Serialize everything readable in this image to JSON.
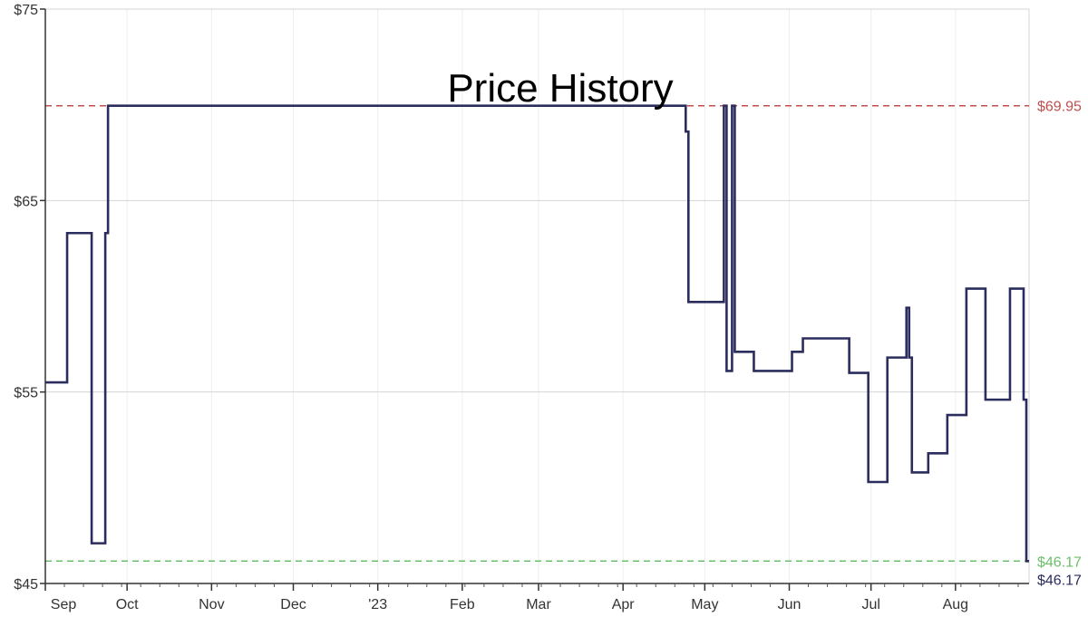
{
  "chart_data": {
    "type": "line",
    "title": "Price History",
    "xlabel": "",
    "ylabel": "",
    "ylim": [
      45,
      75
    ],
    "xlim": [
      "2022-09-01",
      "2023-08-28"
    ],
    "grid": true,
    "y_ticks": [
      "$75",
      "$65",
      "$55",
      "$45"
    ],
    "y_tick_values": [
      75,
      65,
      55,
      45
    ],
    "x_ticks": [
      {
        "label": "Sep",
        "date": "2022-09-01"
      },
      {
        "label": "Oct",
        "date": "2022-10-01"
      },
      {
        "label": "Nov",
        "date": "2022-11-01"
      },
      {
        "label": "Dec",
        "date": "2022-12-01"
      },
      {
        "label": "'23",
        "date": "2023-01-01"
      },
      {
        "label": "Feb",
        "date": "2023-02-01"
      },
      {
        "label": "Mar",
        "date": "2023-03-01"
      },
      {
        "label": "Apr",
        "date": "2023-04-01"
      },
      {
        "label": "May",
        "date": "2023-05-01"
      },
      {
        "label": "Jun",
        "date": "2023-06-01"
      },
      {
        "label": "Jul",
        "date": "2023-07-01"
      },
      {
        "label": "Aug",
        "date": "2023-08-01"
      }
    ],
    "reference_lines": [
      {
        "label": "$69.95",
        "value": 69.95,
        "color": "#c0504d"
      },
      {
        "label": "$46.17",
        "value": 46.17,
        "color": "#6abf69"
      }
    ],
    "current_label": {
      "label": "$46.17",
      "value": 46.17,
      "color": "#2b2d5e"
    },
    "series": [
      {
        "color": "#2b2d5e",
        "step": true,
        "points": [
          [
            "2022-08-28",
            55.5
          ],
          [
            "2022-09-09",
            63.3
          ],
          [
            "2022-09-18",
            47.1
          ],
          [
            "2022-09-23",
            63.3
          ],
          [
            "2022-09-24",
            69.95
          ],
          [
            "2023-04-24",
            68.6
          ],
          [
            "2023-04-25",
            59.7
          ],
          [
            "2023-05-08",
            69.95
          ],
          [
            "2023-05-09",
            56.1
          ],
          [
            "2023-05-11",
            69.95
          ],
          [
            "2023-05-12",
            57.1
          ],
          [
            "2023-05-19",
            56.1
          ],
          [
            "2023-06-02",
            57.1
          ],
          [
            "2023-06-06",
            57.8
          ],
          [
            "2023-06-23",
            56.0
          ],
          [
            "2023-06-30",
            50.3
          ],
          [
            "2023-07-07",
            56.8
          ],
          [
            "2023-07-14",
            59.4
          ],
          [
            "2023-07-15",
            56.8
          ],
          [
            "2023-07-16",
            50.8
          ],
          [
            "2023-07-22",
            51.8
          ],
          [
            "2023-07-29",
            53.8
          ],
          [
            "2023-08-05",
            60.4
          ],
          [
            "2023-08-12",
            54.6
          ],
          [
            "2023-08-21",
            60.4
          ],
          [
            "2023-08-26",
            54.6
          ],
          [
            "2023-08-27",
            46.17
          ]
        ]
      }
    ]
  }
}
